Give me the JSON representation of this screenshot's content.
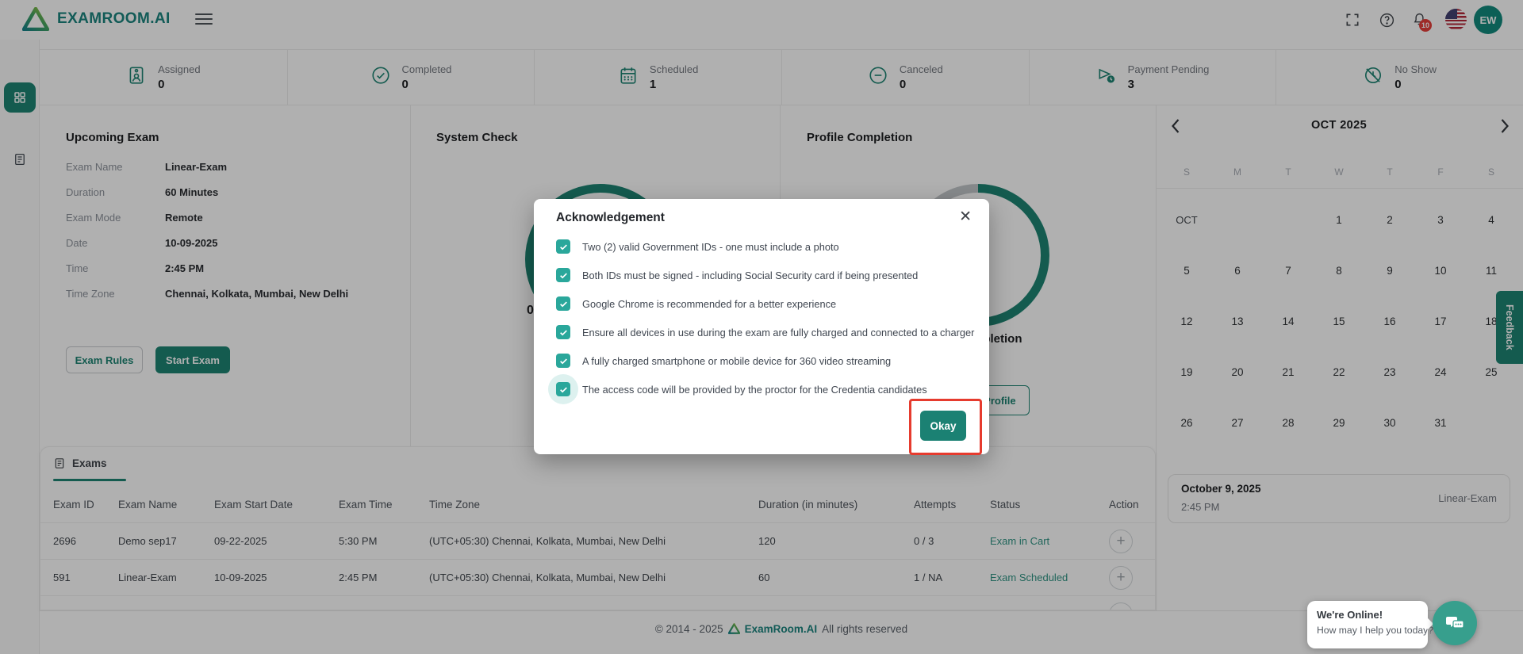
{
  "colors": {
    "brand_teal": "#17806f",
    "checkbox_teal": "#2aa79b",
    "annotation_red": "#e63b2e",
    "badge_red": "#e53935",
    "status_teal": "#2a9180"
  },
  "header": {
    "brand": "EXAMROOM.AI",
    "notification_count": "10",
    "avatar_initials": "EW"
  },
  "stats": [
    {
      "label": "Assigned",
      "value": "0"
    },
    {
      "label": "Completed",
      "value": "0"
    },
    {
      "label": "Scheduled",
      "value": "1"
    },
    {
      "label": "Canceled",
      "value": "0"
    },
    {
      "label": "Payment Pending",
      "value": "3"
    },
    {
      "label": "No Show",
      "value": "0"
    }
  ],
  "upcoming_exam": {
    "title": "Upcoming Exam",
    "fields": [
      {
        "label": "Exam Name",
        "value": "Linear-Exam"
      },
      {
        "label": "Duration",
        "value": "60 Minutes"
      },
      {
        "label": "Exam Mode",
        "value": "Remote"
      },
      {
        "label": "Date",
        "value": "10-09-2025"
      },
      {
        "label": "Time",
        "value": "2:45 PM"
      },
      {
        "label": "Time Zone",
        "value": "Chennai, Kolkata, Mumbai, New Delhi"
      }
    ],
    "exam_rules_label": "Exam Rules",
    "start_exam_label": "Start Exam"
  },
  "system_check": {
    "title": "System Check",
    "partial_value": "0%"
  },
  "profile_completion": {
    "title": "Profile Completion",
    "partial_text": "Completion",
    "button_label": "Complete Profile"
  },
  "calendar": {
    "month_label": "OCT 2025",
    "day_headers": [
      "S",
      "M",
      "T",
      "W",
      "T",
      "F",
      "S"
    ],
    "weeks": [
      [
        "OCT",
        "",
        "",
        "1",
        "2",
        "3",
        "4"
      ],
      [
        "5",
        "6",
        "7",
        "8",
        "9",
        "10",
        "11"
      ],
      [
        "12",
        "13",
        "14",
        "15",
        "16",
        "17",
        "18"
      ],
      [
        "19",
        "20",
        "21",
        "22",
        "23",
        "24",
        "25"
      ],
      [
        "26",
        "27",
        "28",
        "29",
        "30",
        "31",
        ""
      ]
    ],
    "selected_day": "9",
    "event": {
      "date": "October 9, 2025",
      "time": "2:45 PM",
      "name": "Linear-Exam"
    }
  },
  "feedback_label": "Feedback",
  "exams": {
    "tab_label": "Exams",
    "columns": [
      "Exam ID",
      "Exam Name",
      "Exam Start Date",
      "Exam Time",
      "Time Zone",
      "Duration (in minutes)",
      "Attempts",
      "Status",
      "Action"
    ],
    "rows": [
      {
        "cells": [
          "2696",
          "Demo sep17",
          "09-22-2025",
          "5:30 PM",
          "(UTC+05:30) Chennai, Kolkata, Mumbai, New Delhi",
          "120",
          "0 / 3",
          "Exam in Cart"
        ]
      },
      {
        "cells": [
          "591",
          "Linear-Exam",
          "10-09-2025",
          "2:45 PM",
          "(UTC+05:30) Chennai, Kolkata, Mumbai, New Delhi",
          "60",
          "1 / NA",
          "Exam Scheduled"
        ]
      },
      {
        "cells": [
          "",
          "",
          "",
          "",
          "",
          "",
          "",
          ""
        ]
      }
    ]
  },
  "modal": {
    "title": "Acknowledgement",
    "items": [
      "Two (2) valid Government IDs - one must include a photo",
      "Both IDs must be signed - including Social Security card if being presented",
      "Google Chrome is recommended for a better experience",
      "Ensure all devices in use during the exam are fully charged and connected to a charger",
      "A fully charged smartphone or mobile device for 360 video streaming",
      "The access code will be provided by the proctor for the Credentia candidates"
    ],
    "okay_label": "Okay",
    "close_glyph": "✕"
  },
  "footer": {
    "copy": "© 2014 - 2025",
    "brand": "ExamRoom.AI",
    "rights": "All rights reserved"
  },
  "chat": {
    "line1": "We're Online!",
    "line2": "How may I help you today?"
  }
}
